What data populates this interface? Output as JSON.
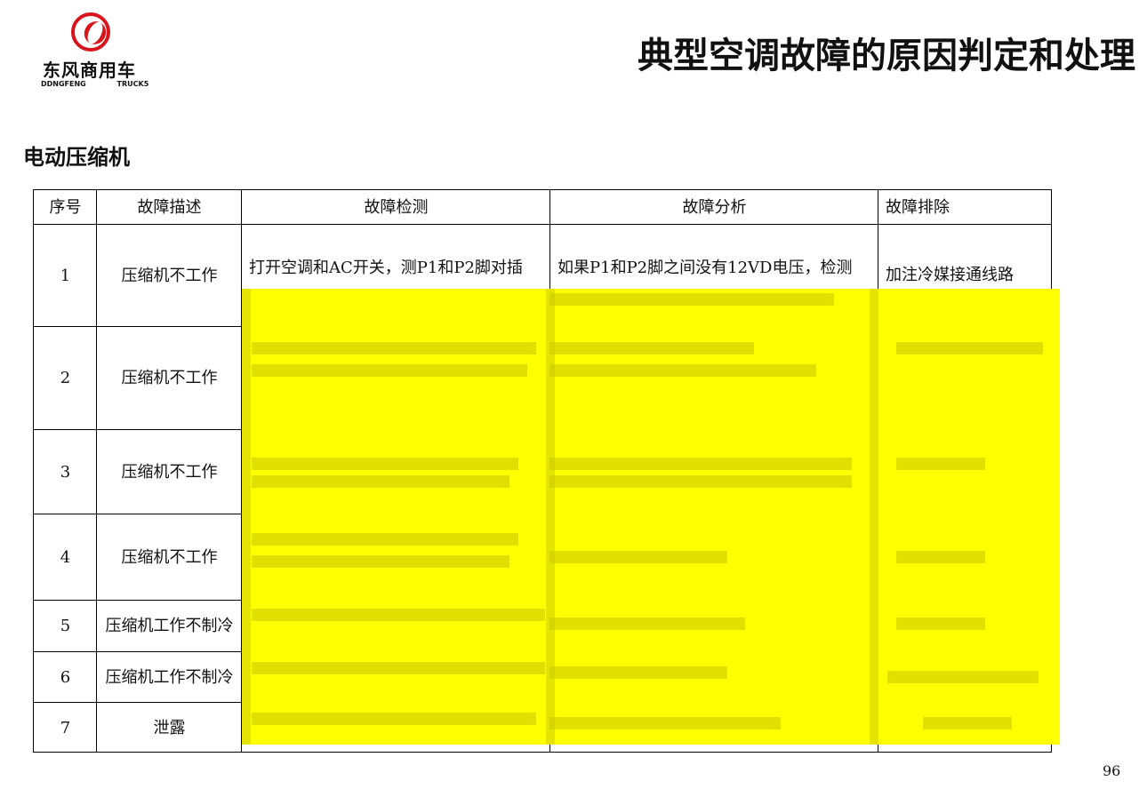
{
  "logo": {
    "cn": "东风商用车",
    "en": "DDNGFENG TRUCK5"
  },
  "header": {
    "title": "典型空调故障的原因判定和处理"
  },
  "section": {
    "title": "电动压缩机"
  },
  "table": {
    "headers": [
      "序号",
      "故障描述",
      "故障检测",
      "故障分析",
      "故障排除"
    ],
    "rows": [
      {
        "no": "1",
        "desc": "压缩机不工作",
        "detect": "打开空调和AC开关，测P1和P2脚对插",
        "analysis": "如果P1和P2脚之间没有12VD电压，检测",
        "fix": "加注冷媒接通线路"
      },
      {
        "no": "2",
        "desc": "压缩机不工作"
      },
      {
        "no": "3",
        "desc": "压缩机不工作"
      },
      {
        "no": "4",
        "desc": "压缩机不工作"
      },
      {
        "no": "5",
        "desc": "压缩机工作不制冷"
      },
      {
        "no": "6",
        "desc": "压缩机工作不制冷"
      },
      {
        "no": "7",
        "desc": "泄露"
      }
    ]
  },
  "colors": {
    "overlay": "#ffff00",
    "brand": "#d8141c"
  },
  "page_number": "96"
}
